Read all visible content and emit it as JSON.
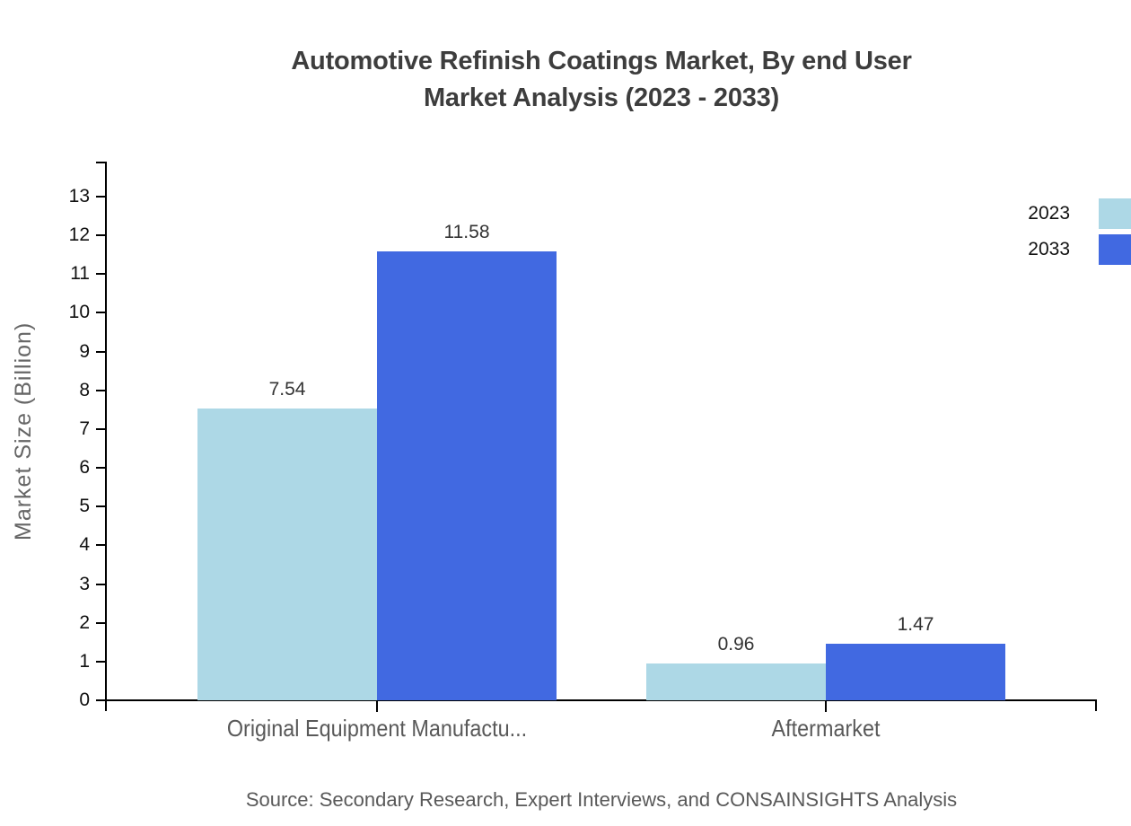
{
  "title": {
    "line1": "Automotive Refinish Coatings Market, By end User",
    "line2": "Market Analysis (2023 - 2033)"
  },
  "source": "Source: Secondary Research, Expert Interviews, and CONSAINSIGHTS Analysis",
  "chart_data": {
    "type": "bar",
    "categories": [
      "Original Equipment Manufactu...",
      "Aftermarket"
    ],
    "series": [
      {
        "name": "2023",
        "color": "#ADD8E6",
        "values": [
          7.54,
          0.96
        ]
      },
      {
        "name": "2033",
        "color": "#4169E1",
        "values": [
          11.58,
          1.47
        ]
      }
    ],
    "value_labels": [
      "7.54",
      "11.58",
      "0.96",
      "1.47"
    ],
    "title": "Automotive Refinish Coatings Market, By end User Market Analysis (2023 - 2033)",
    "xlabel": "",
    "ylabel": "Market Size (Billion)",
    "yticks": [
      0,
      1,
      2,
      3,
      4,
      5,
      6,
      7,
      8,
      9,
      10,
      11,
      12,
      13
    ],
    "ylim": [
      0,
      13.9
    ],
    "grid": false,
    "legend_position": "top-right",
    "legend_entries": [
      "2023",
      "2033"
    ]
  },
  "colors": {
    "series_2023": "#ADD8E6",
    "series_2033": "#4169E1",
    "title_text": "#3d3d3d",
    "axis": "#000000",
    "tick_text": "#111111",
    "category_text": "#595959",
    "source_text": "#595959"
  }
}
